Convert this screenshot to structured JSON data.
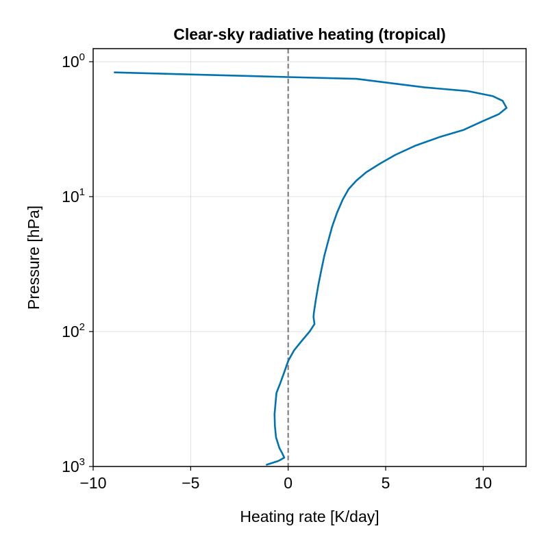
{
  "chart_data": {
    "type": "line",
    "title": "Clear-sky radiative heating (tropical)",
    "xlabel": "Heating rate [K/day]",
    "ylabel": "Pressure [hPa]",
    "xlim": [
      -10,
      12.2
    ],
    "ylim": [
      1000,
      0.8
    ],
    "yscale": "log",
    "y_reversed": true,
    "grid": true,
    "x_ticks": [
      {
        "value": -10,
        "label": "−10"
      },
      {
        "value": -5,
        "label": "−5"
      },
      {
        "value": 0,
        "label": "0"
      },
      {
        "value": 5,
        "label": "5"
      },
      {
        "value": 10,
        "label": "10"
      }
    ],
    "y_ticks": [
      {
        "value": 1,
        "base": "10",
        "exp": "0"
      },
      {
        "value": 10,
        "base": "10",
        "exp": "1"
      },
      {
        "value": 100,
        "base": "10",
        "exp": "2"
      },
      {
        "value": 1000,
        "base": "10",
        "exp": "3"
      }
    ],
    "reference_line": {
      "x": 0,
      "style": "dashed",
      "color": "#808080"
    },
    "series": [
      {
        "color": "#0072B2",
        "points": [
          {
            "x": -8.9,
            "y": 1.2
          },
          {
            "x": 0.0,
            "y": 1.3
          },
          {
            "x": 3.5,
            "y": 1.34
          },
          {
            "x": 7.0,
            "y": 1.55
          },
          {
            "x": 9.2,
            "y": 1.65
          },
          {
            "x": 10.5,
            "y": 1.8
          },
          {
            "x": 11.0,
            "y": 1.95
          },
          {
            "x": 11.2,
            "y": 2.2
          },
          {
            "x": 10.8,
            "y": 2.45
          },
          {
            "x": 10.0,
            "y": 2.75
          },
          {
            "x": 9.0,
            "y": 3.2
          },
          {
            "x": 7.8,
            "y": 3.6
          },
          {
            "x": 6.5,
            "y": 4.2
          },
          {
            "x": 5.5,
            "y": 4.9
          },
          {
            "x": 4.7,
            "y": 5.7
          },
          {
            "x": 4.0,
            "y": 6.6
          },
          {
            "x": 3.5,
            "y": 7.6
          },
          {
            "x": 3.1,
            "y": 8.8
          },
          {
            "x": 2.8,
            "y": 10.5
          },
          {
            "x": 2.5,
            "y": 13.2
          },
          {
            "x": 2.25,
            "y": 16.8
          },
          {
            "x": 2.05,
            "y": 21.5
          },
          {
            "x": 1.85,
            "y": 27.5
          },
          {
            "x": 1.7,
            "y": 35.0
          },
          {
            "x": 1.55,
            "y": 45.0
          },
          {
            "x": 1.42,
            "y": 58.0
          },
          {
            "x": 1.32,
            "y": 72.0
          },
          {
            "x": 1.3,
            "y": 78.0
          },
          {
            "x": 1.35,
            "y": 88.0
          },
          {
            "x": 1.1,
            "y": 100.0
          },
          {
            "x": 0.7,
            "y": 117.0
          },
          {
            "x": 0.3,
            "y": 138.0
          },
          {
            "x": 0.0,
            "y": 165.0
          },
          {
            "x": -0.2,
            "y": 200.0
          },
          {
            "x": -0.4,
            "y": 240.0
          },
          {
            "x": -0.6,
            "y": 285.0
          },
          {
            "x": -0.65,
            "y": 340.0
          },
          {
            "x": -0.7,
            "y": 410.0
          },
          {
            "x": -0.68,
            "y": 500.0
          },
          {
            "x": -0.62,
            "y": 610.0
          },
          {
            "x": -0.45,
            "y": 730.0
          },
          {
            "x": -0.3,
            "y": 800.0
          },
          {
            "x": -0.2,
            "y": 860.0
          },
          {
            "x": -0.5,
            "y": 910.0
          },
          {
            "x": -1.1,
            "y": 970.0
          }
        ]
      }
    ]
  }
}
